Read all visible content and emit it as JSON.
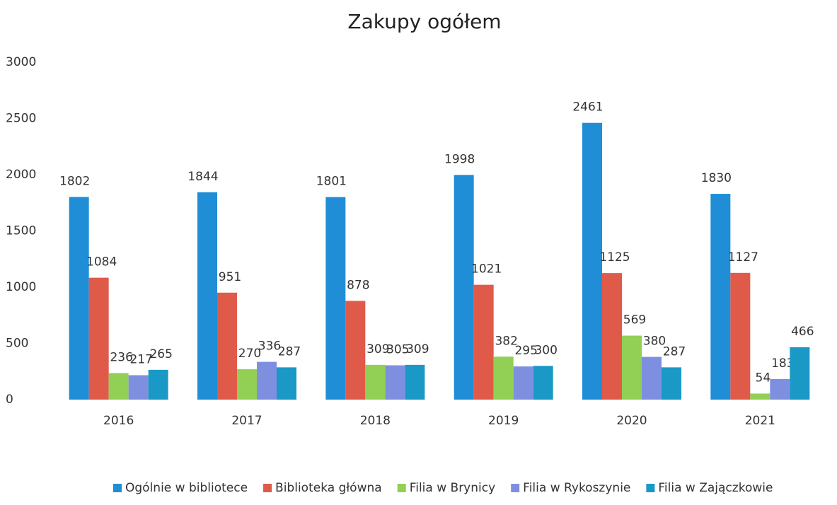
{
  "chart_data": {
    "type": "bar",
    "title": "Zakupy ogółem",
    "categories": [
      "2016",
      "2017",
      "2018",
      "2019",
      "2020",
      "2021"
    ],
    "series": [
      {
        "name": "Ogólnie w bibliotece",
        "color": "#1f8ed6",
        "values": [
          1802,
          1844,
          1801,
          1998,
          2461,
          1830
        ]
      },
      {
        "name": "Biblioteka główna",
        "color": "#e05a4a",
        "values": [
          1084,
          951,
          878,
          1021,
          1125,
          1127
        ]
      },
      {
        "name": "Filia w Brynicy",
        "color": "#92cf55",
        "values": [
          236,
          270,
          309,
          382,
          569,
          54
        ]
      },
      {
        "name": "Filia w Rykoszynie",
        "color": "#7f8fe0",
        "values": [
          217,
          336,
          305,
          295,
          380,
          183
        ]
      },
      {
        "name": "Filia w Zajączkowie",
        "color": "#1a98c6",
        "values": [
          265,
          287,
          309,
          300,
          287,
          466
        ]
      }
    ],
    "ylim": [
      0,
      3000
    ],
    "yticks": [
      0,
      500,
      1000,
      1500,
      2000,
      2500,
      3000
    ],
    "grid": false,
    "legend": "bottom"
  }
}
